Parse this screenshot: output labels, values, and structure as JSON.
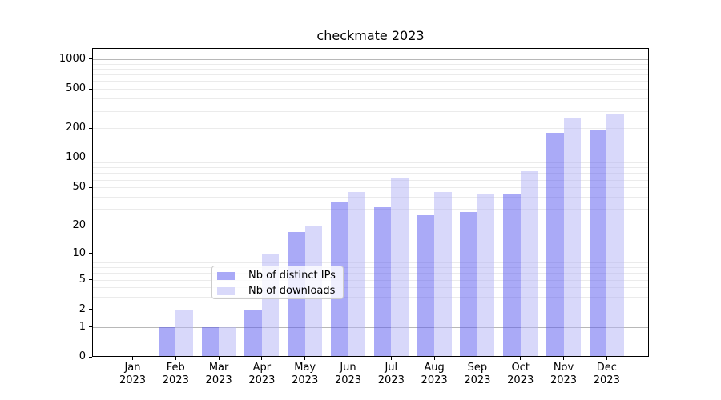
{
  "chart_data": {
    "type": "bar",
    "title": "checkmate 2023",
    "months": [
      "Jan",
      "Feb",
      "Mar",
      "Apr",
      "May",
      "Jun",
      "Jul",
      "Aug",
      "Sep",
      "Oct",
      "Nov",
      "Dec"
    ],
    "year": "2023",
    "y_scale": "log1p",
    "y_ticks": [
      0,
      1,
      2,
      5,
      10,
      20,
      50,
      100,
      200,
      500,
      1000
    ],
    "ylim": [
      0,
      1300
    ],
    "grid": true,
    "legend_position": "lower center",
    "series": [
      {
        "name": "Nb of distinct IPs",
        "color": "rgba(85,85,240,0.5)",
        "swatch_color": "#a9a9f7",
        "values": [
          0,
          1,
          1,
          2,
          17,
          35,
          31,
          26,
          28,
          42,
          180,
          190
        ]
      },
      {
        "name": "Nb of downloads",
        "color": "rgba(178,178,245,0.5)",
        "swatch_color": "#d9d9fa",
        "values": [
          0,
          2,
          1,
          10,
          20,
          45,
          62,
          45,
          43,
          73,
          255,
          275
        ]
      }
    ]
  }
}
